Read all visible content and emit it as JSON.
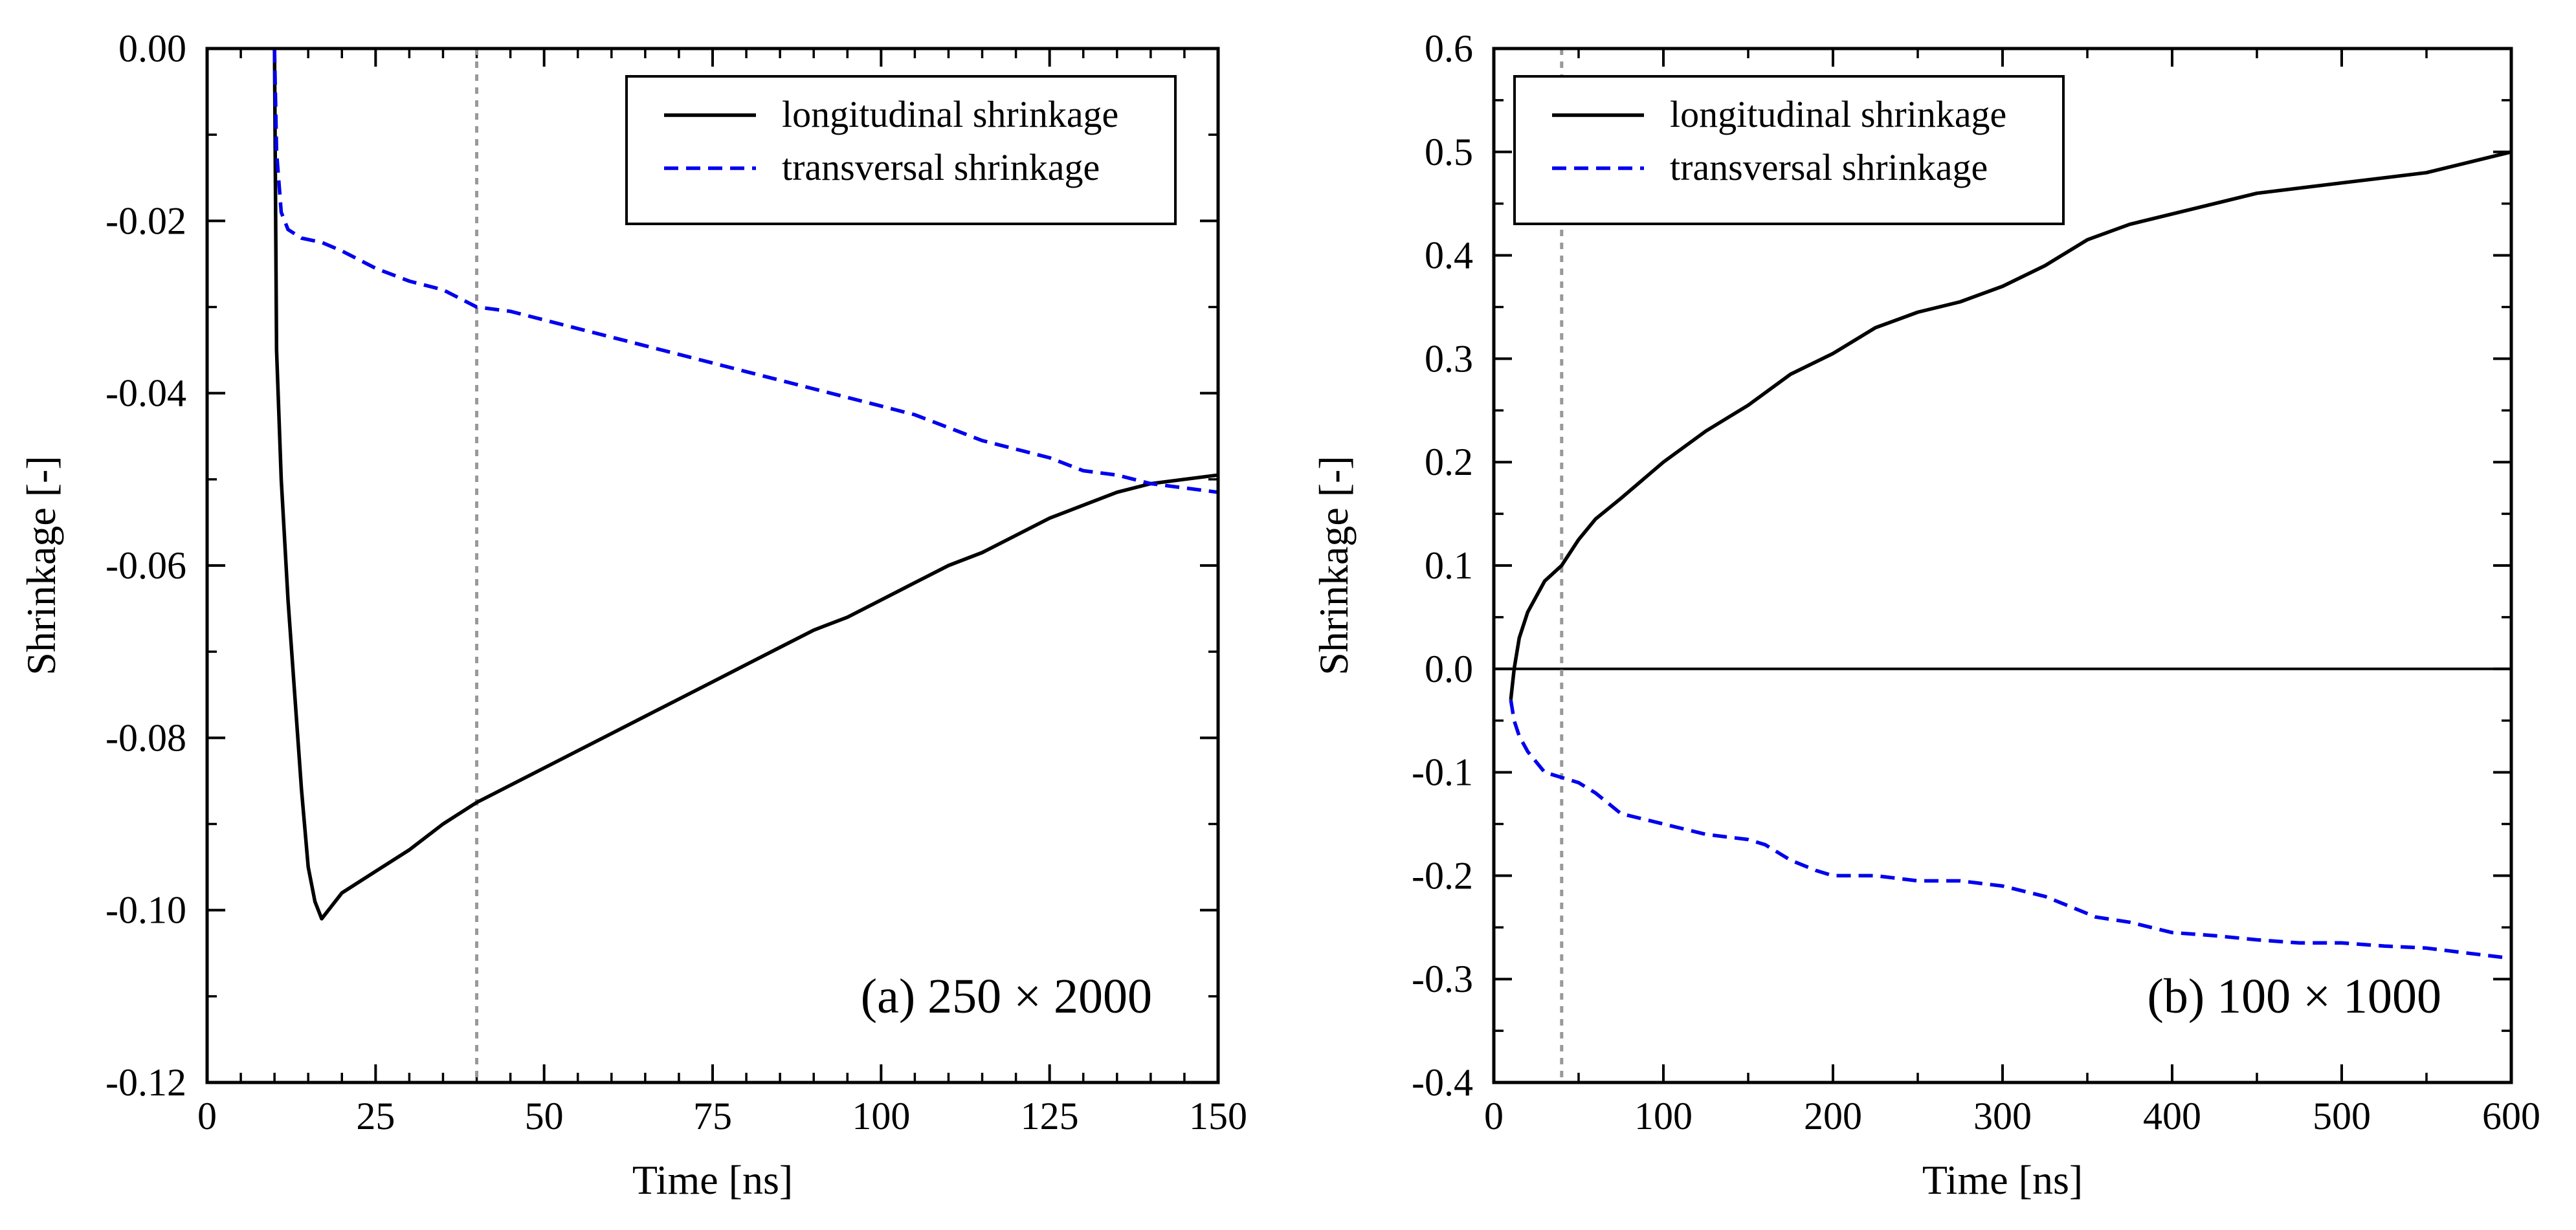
{
  "figure": {
    "panels": [
      {
        "id": "a",
        "annotation": "(a) 250 × 2000",
        "legend": [
          "longitudinal shrinkage",
          "transversal shrinkage"
        ]
      },
      {
        "id": "b",
        "annotation": "(b) 100 × 1000",
        "legend": [
          "longitudinal shrinkage",
          "transversal shrinkage"
        ]
      }
    ]
  },
  "chart_data": [
    {
      "type": "line",
      "title": "",
      "annotation": "(a) 250 × 2000",
      "xlabel": "Time [ns]",
      "ylabel": "Shrinkage [-]",
      "xlim": [
        0,
        150
      ],
      "ylim": [
        -0.12,
        0.0
      ],
      "xticks": [
        0,
        25,
        50,
        75,
        100,
        125,
        150
      ],
      "xtick_labels": [
        "0",
        "25",
        "50",
        "75",
        "100",
        "125",
        "150"
      ],
      "yticks": [
        0.0,
        -0.02,
        -0.04,
        -0.06,
        -0.08,
        -0.1,
        -0.12
      ],
      "ytick_labels": [
        "0.00",
        "-0.02",
        "-0.04",
        "-0.06",
        "-0.08",
        "-0.10",
        "-0.12"
      ],
      "vline": 40,
      "legend_position": "top-right",
      "series": [
        {
          "name": "longitudinal shrinkage",
          "style": "solid",
          "color": "#000000",
          "x": [
            10,
            10.3,
            11,
            12,
            13,
            14,
            15,
            16,
            17,
            18,
            20,
            25,
            30,
            35,
            40,
            45,
            50,
            55,
            60,
            65,
            70,
            75,
            80,
            85,
            90,
            95,
            100,
            105,
            110,
            115,
            120,
            125,
            130,
            135,
            140,
            145,
            150
          ],
          "y": [
            0.0,
            -0.035,
            -0.05,
            -0.064,
            -0.075,
            -0.086,
            -0.095,
            -0.099,
            -0.101,
            -0.1,
            -0.098,
            -0.0955,
            -0.093,
            -0.09,
            -0.0875,
            -0.0855,
            -0.0835,
            -0.0815,
            -0.0795,
            -0.0775,
            -0.0755,
            -0.0735,
            -0.0715,
            -0.0695,
            -0.0675,
            -0.066,
            -0.064,
            -0.062,
            -0.06,
            -0.0585,
            -0.0565,
            -0.0545,
            -0.053,
            -0.0515,
            -0.0505,
            -0.05,
            -0.0495
          ]
        },
        {
          "name": "transversal shrinkage",
          "style": "dashed",
          "color": "#0000ee",
          "x": [
            10,
            10.3,
            11,
            12,
            14,
            17,
            20,
            25,
            30,
            35,
            40,
            45,
            50,
            55,
            60,
            65,
            70,
            75,
            80,
            85,
            90,
            95,
            100,
            105,
            110,
            115,
            120,
            125,
            130,
            135,
            140,
            145,
            150
          ],
          "y": [
            0.0,
            -0.012,
            -0.019,
            -0.021,
            -0.022,
            -0.0225,
            -0.0235,
            -0.0255,
            -0.027,
            -0.028,
            -0.03,
            -0.0305,
            -0.0315,
            -0.0325,
            -0.0335,
            -0.0345,
            -0.0355,
            -0.0365,
            -0.0375,
            -0.0385,
            -0.0395,
            -0.0405,
            -0.0415,
            -0.0425,
            -0.044,
            -0.0455,
            -0.0465,
            -0.0475,
            -0.049,
            -0.0495,
            -0.0505,
            -0.051,
            -0.0515
          ]
        }
      ]
    },
    {
      "type": "line",
      "title": "",
      "annotation": "(b) 100 × 1000",
      "xlabel": "Time [ns]",
      "ylabel": "Shrinkage [-]",
      "xlim": [
        0,
        600
      ],
      "ylim": [
        -0.4,
        0.6
      ],
      "xticks": [
        0,
        100,
        200,
        300,
        400,
        500,
        600
      ],
      "xtick_labels": [
        "0",
        "100",
        "200",
        "300",
        "400",
        "500",
        "600"
      ],
      "yticks": [
        0.6,
        0.5,
        0.4,
        0.3,
        0.2,
        0.1,
        0.0,
        -0.1,
        -0.2,
        -0.3,
        -0.4
      ],
      "ytick_labels": [
        "0.6",
        "0.5",
        "0.4",
        "0.3",
        "0.2",
        "0.1",
        "0.0",
        "-0.1",
        "-0.2",
        "-0.3",
        "-0.4"
      ],
      "vline": 40,
      "hline": 0,
      "legend_position": "top-left",
      "series": [
        {
          "name": "longitudinal shrinkage",
          "style": "solid",
          "color": "#000000",
          "x": [
            10,
            12,
            15,
            20,
            25,
            30,
            40,
            50,
            60,
            75,
            100,
            125,
            150,
            175,
            200,
            225,
            250,
            275,
            300,
            325,
            350,
            375,
            400,
            425,
            450,
            475,
            500,
            525,
            550,
            575,
            600
          ],
          "y": [
            -0.03,
            0.0,
            0.03,
            0.055,
            0.07,
            0.085,
            0.1,
            0.125,
            0.145,
            0.165,
            0.2,
            0.23,
            0.255,
            0.285,
            0.305,
            0.33,
            0.345,
            0.355,
            0.37,
            0.39,
            0.415,
            0.43,
            0.44,
            0.45,
            0.46,
            0.465,
            0.47,
            0.475,
            0.48,
            0.49,
            0.5
          ]
        },
        {
          "name": "transversal shrinkage",
          "style": "dashed",
          "color": "#0000ee",
          "x": [
            10,
            12,
            15,
            20,
            25,
            30,
            40,
            50,
            60,
            75,
            100,
            125,
            150,
            160,
            175,
            190,
            200,
            225,
            250,
            275,
            300,
            325,
            340,
            355,
            375,
            400,
            425,
            450,
            475,
            500,
            525,
            550,
            575,
            600
          ],
          "y": [
            -0.03,
            -0.05,
            -0.065,
            -0.08,
            -0.09,
            -0.1,
            -0.105,
            -0.11,
            -0.12,
            -0.14,
            -0.15,
            -0.16,
            -0.165,
            -0.17,
            -0.185,
            -0.195,
            -0.2,
            -0.2,
            -0.205,
            -0.205,
            -0.21,
            -0.22,
            -0.23,
            -0.24,
            -0.245,
            -0.255,
            -0.258,
            -0.262,
            -0.265,
            -0.265,
            -0.268,
            -0.27,
            -0.275,
            -0.28
          ]
        }
      ]
    }
  ]
}
